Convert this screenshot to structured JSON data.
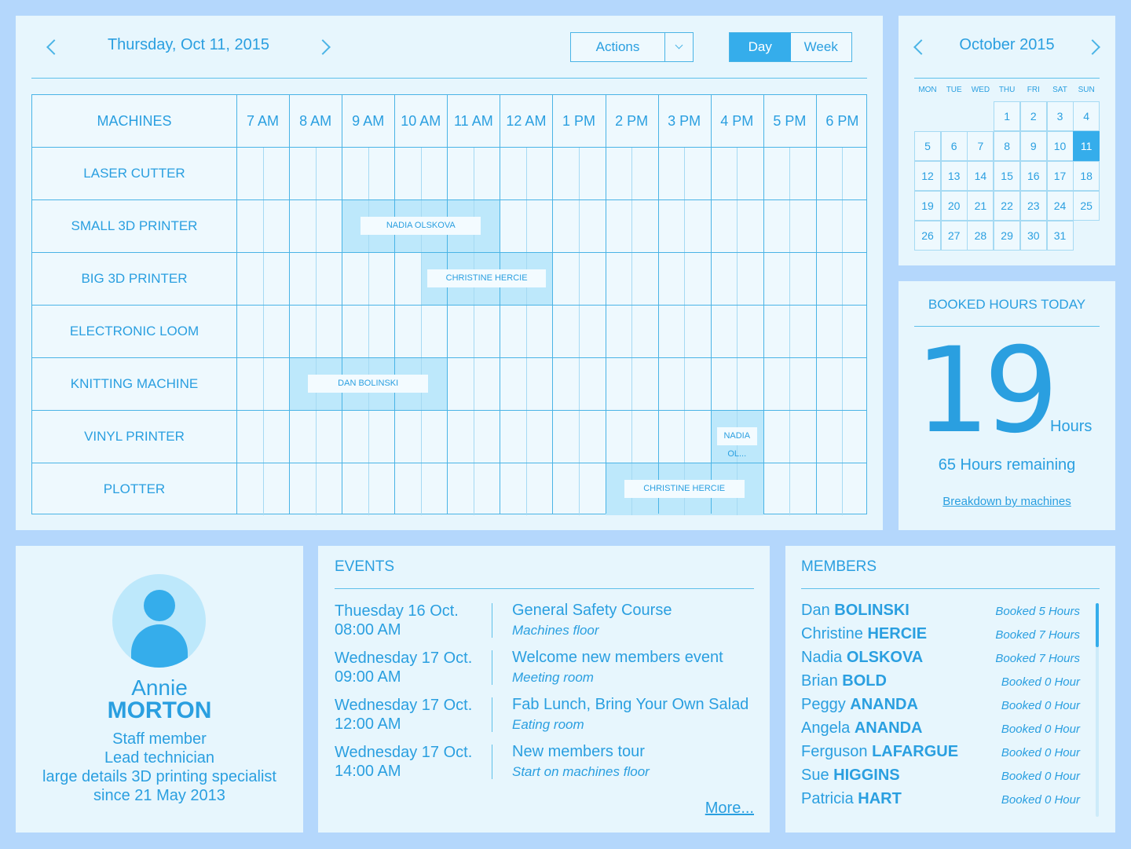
{
  "schedule": {
    "date": "Thursday, Oct 11, 2015",
    "actions_label": "Actions",
    "view_tabs": [
      "Day",
      "Week"
    ],
    "active_view": "Day",
    "machines_header": "MACHINES",
    "hours": [
      "7 AM",
      "8 AM",
      "9 AM",
      "10 AM",
      "11 AM",
      "12 AM",
      "1 PM",
      "2 PM",
      "3 PM",
      "4 PM",
      "5 PM",
      "6 PM"
    ],
    "machines": [
      "LASER CUTTER",
      "SMALL 3D PRINTER",
      "BIG 3D PRINTER",
      "ELECTRONIC LOOM",
      "KNITTING MACHINE",
      "VINYL PRINTER",
      "PLOTTER"
    ],
    "bookings": [
      {
        "machine": 1,
        "start": 2,
        "end": 5,
        "member": "NADIA OLSKOVA"
      },
      {
        "machine": 2,
        "start": 3.5,
        "end": 6,
        "member": "CHRISTINE HERCIE"
      },
      {
        "machine": 4,
        "start": 1,
        "end": 4,
        "member": "DAN BOLINSKI"
      },
      {
        "machine": 5,
        "start": 9,
        "end": 10,
        "member": "NADIA OL..."
      },
      {
        "machine": 6,
        "start": 7,
        "end": 10,
        "member": "CHRISTINE HERCIE"
      }
    ]
  },
  "calendar": {
    "month": "October 2015",
    "weekdays": [
      "MON",
      "TUE",
      "WED",
      "THU",
      "FRI",
      "SAT",
      "SUN"
    ],
    "first_weekday_index": 3,
    "days_in_month": 31,
    "selected_day": 11,
    "accent": "#35adeb"
  },
  "booked_hours": {
    "title": "BOOKED HOURS TODAY",
    "value": "19",
    "unit": "Hours",
    "remaining": "65 Hours remaining",
    "breakdown_link": "Breakdown by machines"
  },
  "profile": {
    "first_name": "Annie",
    "last_name": "MORTON",
    "role": "Staff member",
    "title": "Lead technician",
    "specialty": "large details 3D printing specialist",
    "since": "since 21 May 2013"
  },
  "events": {
    "title": "EVENTS",
    "items": [
      {
        "day": "Thuesday 16 Oct.",
        "time": "08:00 AM",
        "name": "General Safety Course",
        "location": "Machines floor"
      },
      {
        "day": "Wednesday 17 Oct.",
        "time": "09:00 AM",
        "name": "Welcome new members event",
        "location": "Meeting room"
      },
      {
        "day": "Wednesday 17 Oct.",
        "time": "12:00 AM",
        "name": "Fab Lunch, Bring Your Own Salad",
        "location": "Eating room"
      },
      {
        "day": "Wednesday 17 Oct.",
        "time": "14:00 AM",
        "name": "New members tour",
        "location": "Start on machines floor"
      }
    ],
    "more": "More..."
  },
  "members": {
    "title": "MEMBERS",
    "items": [
      {
        "first": "Dan",
        "last": "BOLINSKI",
        "booked": "Booked 5 Hours"
      },
      {
        "first": "Christine",
        "last": "HERCIE",
        "booked": "Booked 7 Hours"
      },
      {
        "first": "Nadia",
        "last": "OLSKOVA",
        "booked": "Booked 7 Hours"
      },
      {
        "first": "Brian",
        "last": "BOLD",
        "booked": "Booked 0 Hour"
      },
      {
        "first": "Peggy",
        "last": "ANANDA",
        "booked": "Booked 0 Hour"
      },
      {
        "first": "Angela",
        "last": "ANANDA",
        "booked": "Booked 0 Hour"
      },
      {
        "first": "Ferguson",
        "last": "LAFARGUE",
        "booked": "Booked 0 Hour"
      },
      {
        "first": "Sue",
        "last": "HIGGINS",
        "booked": "Booked 0 Hour"
      },
      {
        "first": "Patricia",
        "last": "HART",
        "booked": "Booked 0 Hour"
      }
    ]
  }
}
